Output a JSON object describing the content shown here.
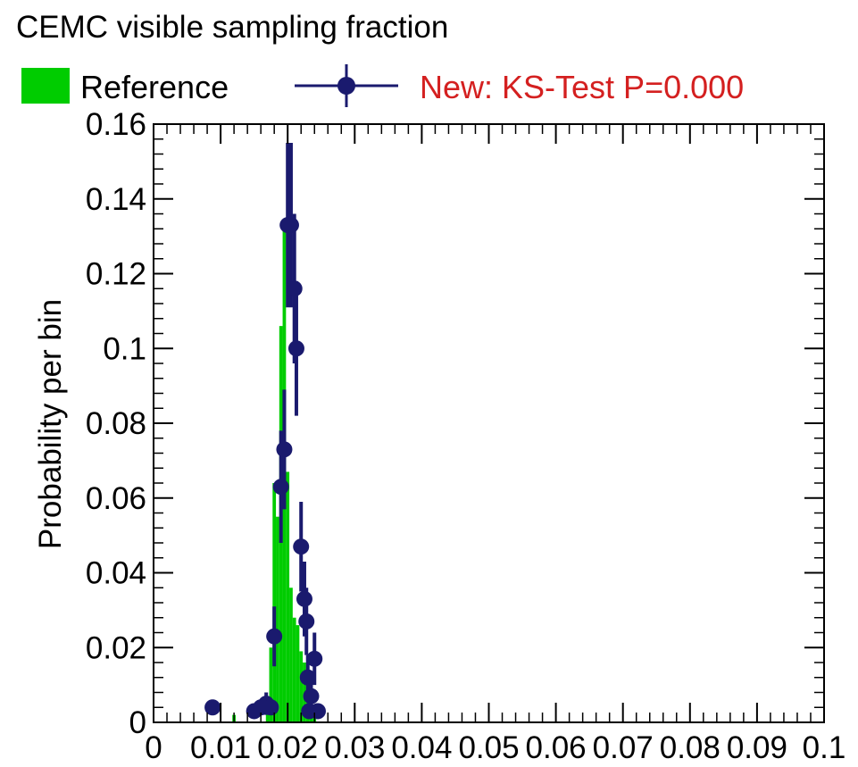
{
  "chart_data": {
    "type": "bar",
    "title": "CEMC visible sampling fraction",
    "xlabel": "",
    "ylabel": "Probability per bin",
    "xlim": [
      0,
      0.1
    ],
    "ylim": [
      0,
      0.16
    ],
    "x_tick_labels": [
      "0",
      "0.01",
      "0.02",
      "0.03",
      "0.04",
      "0.05",
      "0.06",
      "0.07",
      "0.08",
      "0.09",
      "0.1"
    ],
    "y_tick_labels": [
      "0",
      "0.02",
      "0.04",
      "0.06",
      "0.08",
      "0.1",
      "0.12",
      "0.14",
      "0.16"
    ],
    "legend_position": "top",
    "series": [
      {
        "name": "Reference",
        "style": "filled-histogram",
        "color": "#00cc00",
        "bin_width": 0.0005,
        "x": [
          0.012,
          0.017,
          0.0175,
          0.018,
          0.0185,
          0.019,
          0.0195,
          0.02,
          0.0205,
          0.021,
          0.0215,
          0.022,
          0.0225,
          0.023,
          0.0235,
          0.024
        ],
        "values": [
          0.002,
          0.005,
          0.02,
          0.064,
          0.055,
          0.106,
          0.134,
          0.067,
          0.036,
          0.028,
          0.026,
          0.019,
          0.016,
          0.012,
          0.006,
          0.004
        ]
      },
      {
        "name": "New: KS-Test P=0.000",
        "style": "markers-with-errors",
        "color": "#1a1a6e",
        "label_color": "#d42020",
        "x": [
          0.0088,
          0.015,
          0.016,
          0.0168,
          0.0175,
          0.018,
          0.019,
          0.0195,
          0.02,
          0.0205,
          0.021,
          0.0213,
          0.022,
          0.0225,
          0.0228,
          0.023,
          0.0232,
          0.0235,
          0.024,
          0.0245
        ],
        "values": [
          0.004,
          0.003,
          0.004,
          0.005,
          0.004,
          0.023,
          0.063,
          0.073,
          0.133,
          0.133,
          0.116,
          0.1,
          0.047,
          0.033,
          0.027,
          0.012,
          0.003,
          0.007,
          0.017,
          0.003
        ],
        "errors": [
          0.002,
          0.002,
          0.002,
          0.003,
          0.002,
          0.008,
          0.015,
          0.016,
          0.022,
          0.022,
          0.02,
          0.018,
          0.012,
          0.01,
          0.009,
          0.006,
          0.002,
          0.004,
          0.007,
          0.002
        ]
      }
    ]
  }
}
